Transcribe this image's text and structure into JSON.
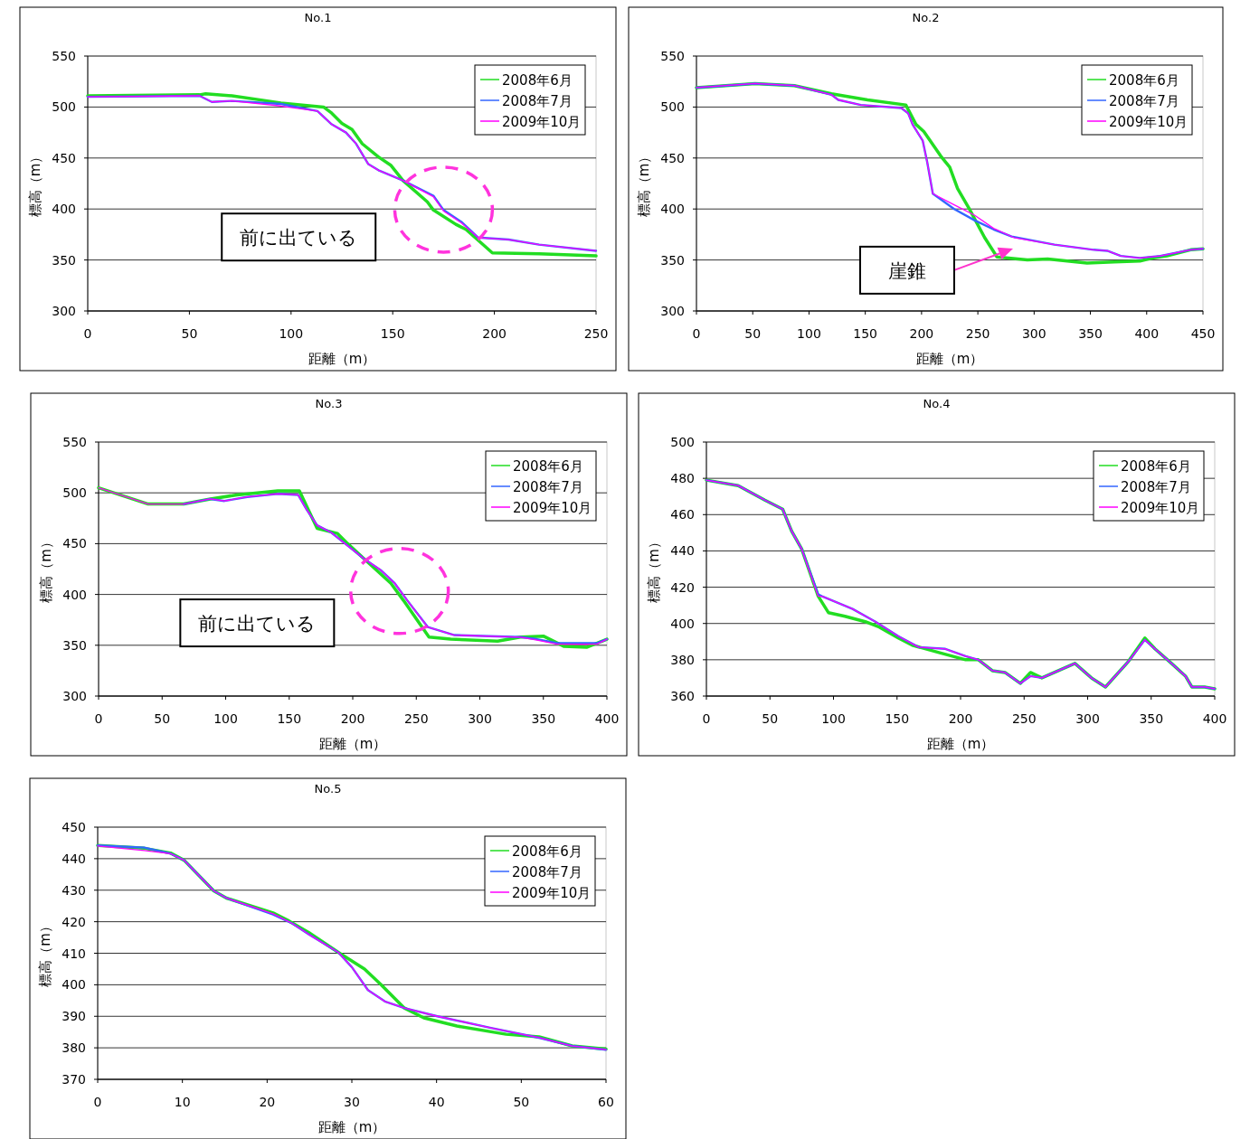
{
  "chart_data": [
    {
      "type": "line",
      "title": "No.1",
      "xlabel": "距離（m）",
      "ylabel": "標高（m）",
      "xlim": [
        0,
        250
      ],
      "xticks": [
        0,
        50,
        100,
        150,
        200,
        250
      ],
      "ylim": [
        300,
        550
      ],
      "yticks": [
        300,
        350,
        400,
        450,
        500,
        550
      ],
      "grid": "y",
      "legend": "top right",
      "annotations": [
        "前に出ている"
      ],
      "series": [
        {
          "name": "2008年6月",
          "color": "#22dd22",
          "x": [
            0,
            55,
            58,
            71,
            95,
            116,
            120,
            125,
            130,
            135,
            143,
            149,
            155,
            167,
            170,
            181,
            186,
            199,
            222,
            250
          ],
          "values": [
            511,
            512,
            513,
            511,
            504,
            500,
            494,
            484,
            478,
            464,
            451,
            443,
            428,
            407,
            399,
            385,
            380,
            357,
            356,
            354
          ]
        },
        {
          "name": "2008年7月",
          "color": "#3366ff",
          "x": [
            0,
            55,
            61,
            71,
            95,
            113,
            120,
            127,
            132,
            138,
            143,
            155,
            170,
            175,
            184,
            192,
            207,
            222,
            250
          ],
          "values": [
            510,
            511,
            505,
            506,
            503,
            496,
            483,
            475,
            464,
            444,
            438,
            428,
            413,
            399,
            387,
            372,
            370,
            365,
            359
          ]
        },
        {
          "name": "2009年10月",
          "color": "#ff00ff",
          "x": [
            0,
            55,
            61,
            71,
            95,
            113,
            120,
            127,
            132,
            138,
            143,
            155,
            170,
            175,
            184,
            192,
            207,
            222,
            250
          ],
          "values": [
            510,
            511,
            505,
            506,
            501,
            496,
            483,
            475,
            464,
            444,
            438,
            428,
            412,
            398,
            386,
            372,
            370,
            365,
            359
          ]
        }
      ]
    },
    {
      "type": "line",
      "title": "No.2",
      "xlabel": "距離（m）",
      "ylabel": "標高（m）",
      "xlim": [
        0,
        450
      ],
      "xticks": [
        0,
        50,
        100,
        150,
        200,
        250,
        300,
        350,
        400,
        450
      ],
      "ylim": [
        300,
        550
      ],
      "yticks": [
        300,
        350,
        400,
        450,
        500,
        550
      ],
      "grid": "y",
      "legend": "top right",
      "annotations": [
        "崖錐"
      ],
      "series": [
        {
          "name": "2008年6月",
          "color": "#22dd22",
          "x": [
            0,
            52,
            87,
            120,
            152,
            186,
            195,
            202,
            217,
            225,
            232,
            242,
            256,
            267,
            294,
            312,
            347,
            371,
            394,
            406,
            418,
            439,
            450
          ],
          "values": [
            519,
            523,
            521,
            513,
            507,
            502,
            483,
            476,
            452,
            441,
            420,
            401,
            372,
            353,
            350,
            351,
            347,
            348,
            349,
            352,
            354,
            360,
            361
          ]
        },
        {
          "name": "2008年7月",
          "color": "#3366ff",
          "x": [
            0,
            52,
            87,
            120,
            126,
            146,
            182,
            188,
            192,
            201,
            205,
            210,
            229,
            247,
            264,
            280,
            318,
            353,
            365,
            377,
            394,
            412,
            439,
            450
          ],
          "values": [
            519,
            523,
            521,
            512,
            507,
            502,
            499,
            494,
            483,
            467,
            446,
            415,
            400,
            389,
            380,
            373,
            365,
            360,
            359,
            354,
            352,
            354,
            360,
            361
          ]
        },
        {
          "name": "2009年10月",
          "color": "#ff00ff",
          "x": [
            0,
            52,
            87,
            120,
            126,
            146,
            182,
            188,
            192,
            201,
            205,
            210,
            229,
            247,
            264,
            282,
            318,
            353,
            365,
            377,
            394,
            412,
            439,
            450
          ],
          "values": [
            519,
            523,
            521,
            512,
            507,
            502,
            499,
            494,
            483,
            467,
            446,
            415,
            404,
            394,
            381,
            372,
            365,
            360,
            359,
            354,
            352,
            354,
            360,
            361
          ]
        }
      ]
    },
    {
      "type": "line",
      "title": "No.3",
      "xlabel": "距離（m）",
      "ylabel": "標高（m）",
      "xlim": [
        0,
        400
      ],
      "xticks": [
        0,
        50,
        100,
        150,
        200,
        250,
        300,
        350,
        400
      ],
      "ylim": [
        300,
        550
      ],
      "yticks": [
        300,
        350,
        400,
        450,
        500,
        550
      ],
      "grid": "y",
      "legend": "top right",
      "annotations": [
        "前に出ている"
      ],
      "series": [
        {
          "name": "2008年6月",
          "color": "#22dd22",
          "x": [
            0,
            39,
            67,
            88,
            109,
            141,
            158,
            172,
            188,
            196,
            209,
            230,
            240,
            260,
            277,
            314,
            332,
            350,
            366,
            384,
            400
          ],
          "values": [
            505,
            489,
            489,
            494,
            498,
            502,
            502,
            465,
            460,
            450,
            435,
            411,
            394,
            358,
            356,
            354,
            358,
            359,
            349,
            348,
            356
          ]
        },
        {
          "name": "2008年7月",
          "color": "#3366ff",
          "x": [
            67,
            88,
            99,
            117,
            141,
            157,
            164,
            172,
            183,
            196,
            209,
            222,
            233,
            243,
            259,
            280,
            332,
            345,
            361,
            392,
            400
          ],
          "values": [
            489,
            494,
            492,
            496,
            499,
            498,
            483,
            468,
            461,
            448,
            435,
            424,
            411,
            394,
            368,
            360,
            358,
            356,
            352,
            352,
            356
          ]
        },
        {
          "name": "2009年10月",
          "color": "#ff00ff",
          "x": [
            0,
            39,
            67,
            88,
            99,
            117,
            141,
            157,
            164,
            172,
            183,
            196,
            209,
            222,
            233,
            243,
            259,
            280,
            332,
            345,
            361,
            392,
            400
          ],
          "values": [
            505,
            489,
            489,
            494,
            492,
            496,
            499,
            498,
            483,
            468,
            461,
            448,
            435,
            424,
            411,
            394,
            368,
            360,
            358,
            355,
            351,
            351,
            356
          ]
        }
      ]
    },
    {
      "type": "line",
      "title": "No.4",
      "xlabel": "距離（m）",
      "ylabel": "標高（m）",
      "xlim": [
        0,
        400
      ],
      "xticks": [
        0,
        50,
        100,
        150,
        200,
        250,
        300,
        350,
        400
      ],
      "ylim": [
        360,
        500
      ],
      "yticks": [
        360,
        380,
        400,
        420,
        440,
        460,
        480,
        500
      ],
      "grid": "y",
      "legend": "top right",
      "series": [
        {
          "name": "2008年6月",
          "color": "#22dd22",
          "x": [
            0,
            25,
            46,
            60,
            67,
            75,
            88,
            96,
            109,
            125,
            136,
            151,
            162,
            183,
            204,
            214,
            225,
            235,
            247,
            255,
            264,
            277,
            290,
            303,
            314,
            332,
            345,
            353,
            366,
            377,
            382,
            392,
            400
          ],
          "values": [
            479,
            476,
            468,
            463,
            451,
            441,
            415,
            406,
            404,
            401,
            398,
            392,
            388,
            384,
            380,
            380,
            374,
            373,
            367,
            373,
            370,
            374,
            378,
            370,
            365,
            379,
            392,
            386,
            378,
            371,
            365,
            365,
            364
          ]
        },
        {
          "name": "2008年7月",
          "color": "#3366ff",
          "x": [
            0,
            25,
            46,
            60,
            67,
            75,
            88,
            91,
            115,
            133,
            151,
            167,
            188,
            204,
            214,
            225,
            235,
            247,
            255,
            264,
            277,
            290,
            303,
            314,
            332,
            345,
            353,
            366,
            377,
            382,
            392,
            400
          ],
          "values": [
            479,
            476,
            468,
            463,
            451,
            441,
            416,
            415,
            408,
            401,
            393,
            387,
            386,
            382,
            380,
            374,
            373,
            367,
            371,
            370,
            374,
            378,
            370,
            365,
            379,
            391,
            386,
            378,
            371,
            365,
            365,
            364
          ]
        },
        {
          "name": "2009年10月",
          "color": "#ff00ff",
          "x": [
            0,
            25,
            46,
            60,
            67,
            75,
            88,
            91,
            115,
            133,
            151,
            167,
            188,
            204,
            214,
            225,
            235,
            247,
            255,
            264,
            277,
            290,
            303,
            314,
            332,
            345,
            353,
            366,
            377,
            382,
            392,
            400
          ],
          "values": [
            479,
            476,
            468,
            463,
            451,
            441,
            415,
            415,
            408,
            401,
            393,
            387,
            386,
            382,
            380,
            374,
            373,
            367,
            371,
            370,
            374,
            378,
            370,
            365,
            379,
            391,
            386,
            378,
            371,
            365,
            365,
            364
          ]
        }
      ]
    },
    {
      "type": "line",
      "title": "No.5",
      "xlabel": "距離（m）",
      "ylabel": "標高（m）",
      "xlim": [
        0,
        60
      ],
      "xticks": [
        0,
        10,
        20,
        30,
        40,
        50,
        60
      ],
      "ylim": [
        370,
        450
      ],
      "yticks": [
        370,
        380,
        390,
        400,
        410,
        420,
        430,
        440,
        450
      ],
      "grid": "y",
      "legend": "top right",
      "series": [
        {
          "name": "2008年6月",
          "color": "#22dd22",
          "x": [
            0,
            5.5,
            8.6,
            10.2,
            13.7,
            15.2,
            20.7,
            22.6,
            24.9,
            28.4,
            31.5,
            33.5,
            36.2,
            38.5,
            42.4,
            48.2,
            52.1,
            56,
            60
          ],
          "values": [
            444.2,
            443.3,
            441.8,
            439.5,
            429.8,
            427.5,
            422.8,
            420.2,
            416.6,
            410.3,
            405,
            399.9,
            392.6,
            389.5,
            386.9,
            384.3,
            383.5,
            380.6,
            379.6
          ]
        },
        {
          "name": "2008年7月",
          "color": "#3366ff",
          "x": [
            0,
            5.5,
            8.6,
            10.2,
            13.7,
            15.2,
            20.7,
            23,
            24.9,
            28.4,
            30,
            31.9,
            33.9,
            36.2,
            40.1,
            46.3,
            52.1,
            56,
            60
          ],
          "values": [
            444.2,
            443.5,
            441.6,
            439.5,
            429.8,
            427.5,
            422.3,
            419.4,
            416,
            410.3,
            405.6,
            398.3,
            394.7,
            392.6,
            390,
            386.4,
            383.2,
            380.6,
            379.4
          ]
        },
        {
          "name": "2009年10月",
          "color": "#ff00ff",
          "x": [
            0,
            5.5,
            8.6,
            10.2,
            13.7,
            15.2,
            20.7,
            23,
            24.9,
            28.4,
            30,
            31.9,
            33.9,
            36.2,
            40.1,
            46.3,
            52.1,
            56,
            60
          ],
          "values": [
            444,
            442.6,
            441.6,
            439.5,
            429.8,
            427.5,
            422.5,
            419.4,
            416,
            410.3,
            405.6,
            398.3,
            394.7,
            392.6,
            390,
            386.4,
            383.2,
            380.6,
            379.4
          ]
        }
      ]
    }
  ]
}
